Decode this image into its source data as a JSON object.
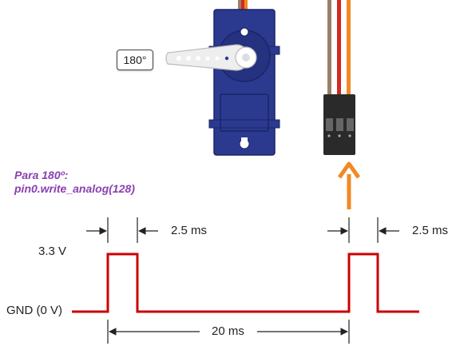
{
  "servo": {
    "angle_label": "180°"
  },
  "code_note": {
    "line1": "Para 180º:",
    "line2": "pin0.write_analog(128)"
  },
  "signal": {
    "high_label": "3.3 V",
    "low_label": "GND (0 V)",
    "pulse_width_label_1": "2.5 ms",
    "pulse_width_label_2": "2.5 ms",
    "period_label": "20 ms"
  },
  "colors": {
    "signal_line": "#cc0000",
    "servo_body": "#2b3a8f",
    "arrow": "#f08a24",
    "code_text": "#8a3fb0",
    "wire_brown": "#9b8068",
    "wire_red": "#d42a1e",
    "wire_orange": "#f08a24"
  }
}
